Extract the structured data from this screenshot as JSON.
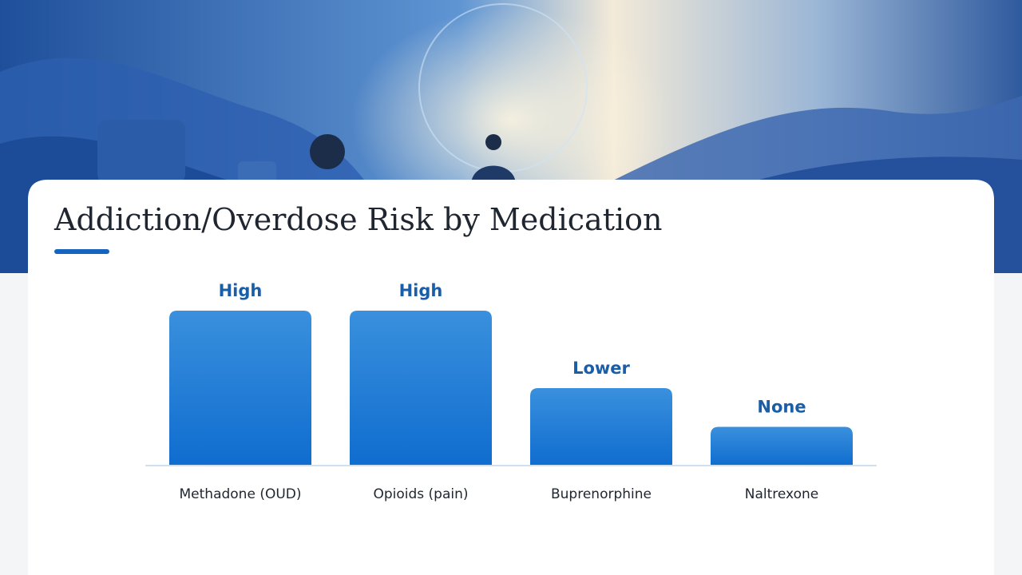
{
  "chart_data": {
    "type": "bar",
    "title": "Addiction/Overdose Risk by Medication",
    "categories": [
      "Methadone (OUD)",
      "Opioids (pain)",
      "Buprenorphine",
      "Naltrexone"
    ],
    "values": [
      4,
      4,
      2,
      1
    ],
    "value_labels": [
      "High",
      "High",
      "Lower",
      "None"
    ],
    "ylim": [
      0,
      4
    ]
  }
}
